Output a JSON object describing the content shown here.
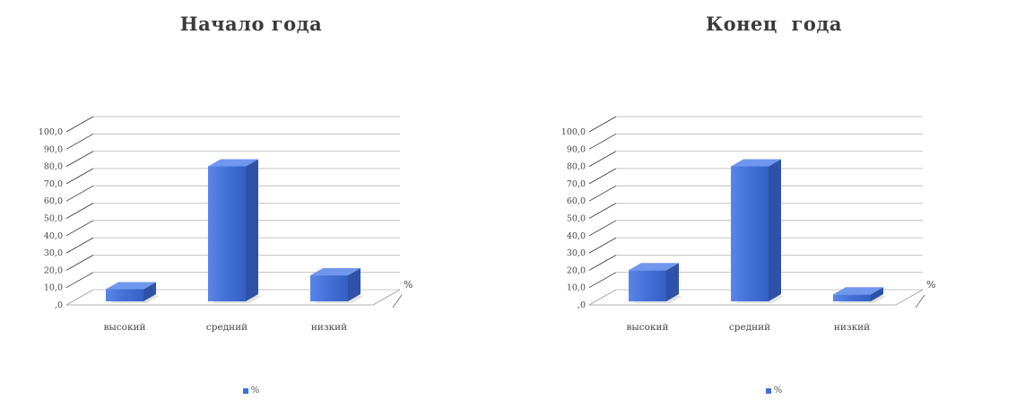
{
  "chart_data": [
    {
      "type": "bar",
      "title": "Начало года",
      "categories": [
        "высокий",
        "средний",
        "низкий"
      ],
      "series": [
        {
          "name": "%",
          "values": [
            7,
            78,
            15
          ]
        }
      ],
      "depth_label": "%",
      "ylim": [
        0,
        100
      ],
      "yticks": [
        "100,0",
        "90,0",
        "80,0",
        "70,0",
        "60,0",
        "50,0",
        "40,0",
        "30,0",
        "20,0",
        "10,0",
        ",0"
      ],
      "legend": "bottom",
      "grid": true
    },
    {
      "type": "bar",
      "title": "Конец  года",
      "categories": [
        "высокий",
        "средний",
        "низкий"
      ],
      "series": [
        {
          "name": "%",
          "values": [
            18,
            78,
            4
          ]
        }
      ],
      "depth_label": "%",
      "ylim": [
        0,
        100
      ],
      "yticks": [
        "100,0",
        "90,0",
        "80,0",
        "70,0",
        "60,0",
        "50,0",
        "40,0",
        "30,0",
        "20,0",
        "10,0",
        ",0"
      ],
      "legend": "bottom",
      "grid": true
    }
  ],
  "colors": {
    "bar_front": "#4472d9",
    "bar_top": "#6f97ee",
    "bar_side": "#2f52a8",
    "grid": "#b5b5b5"
  }
}
